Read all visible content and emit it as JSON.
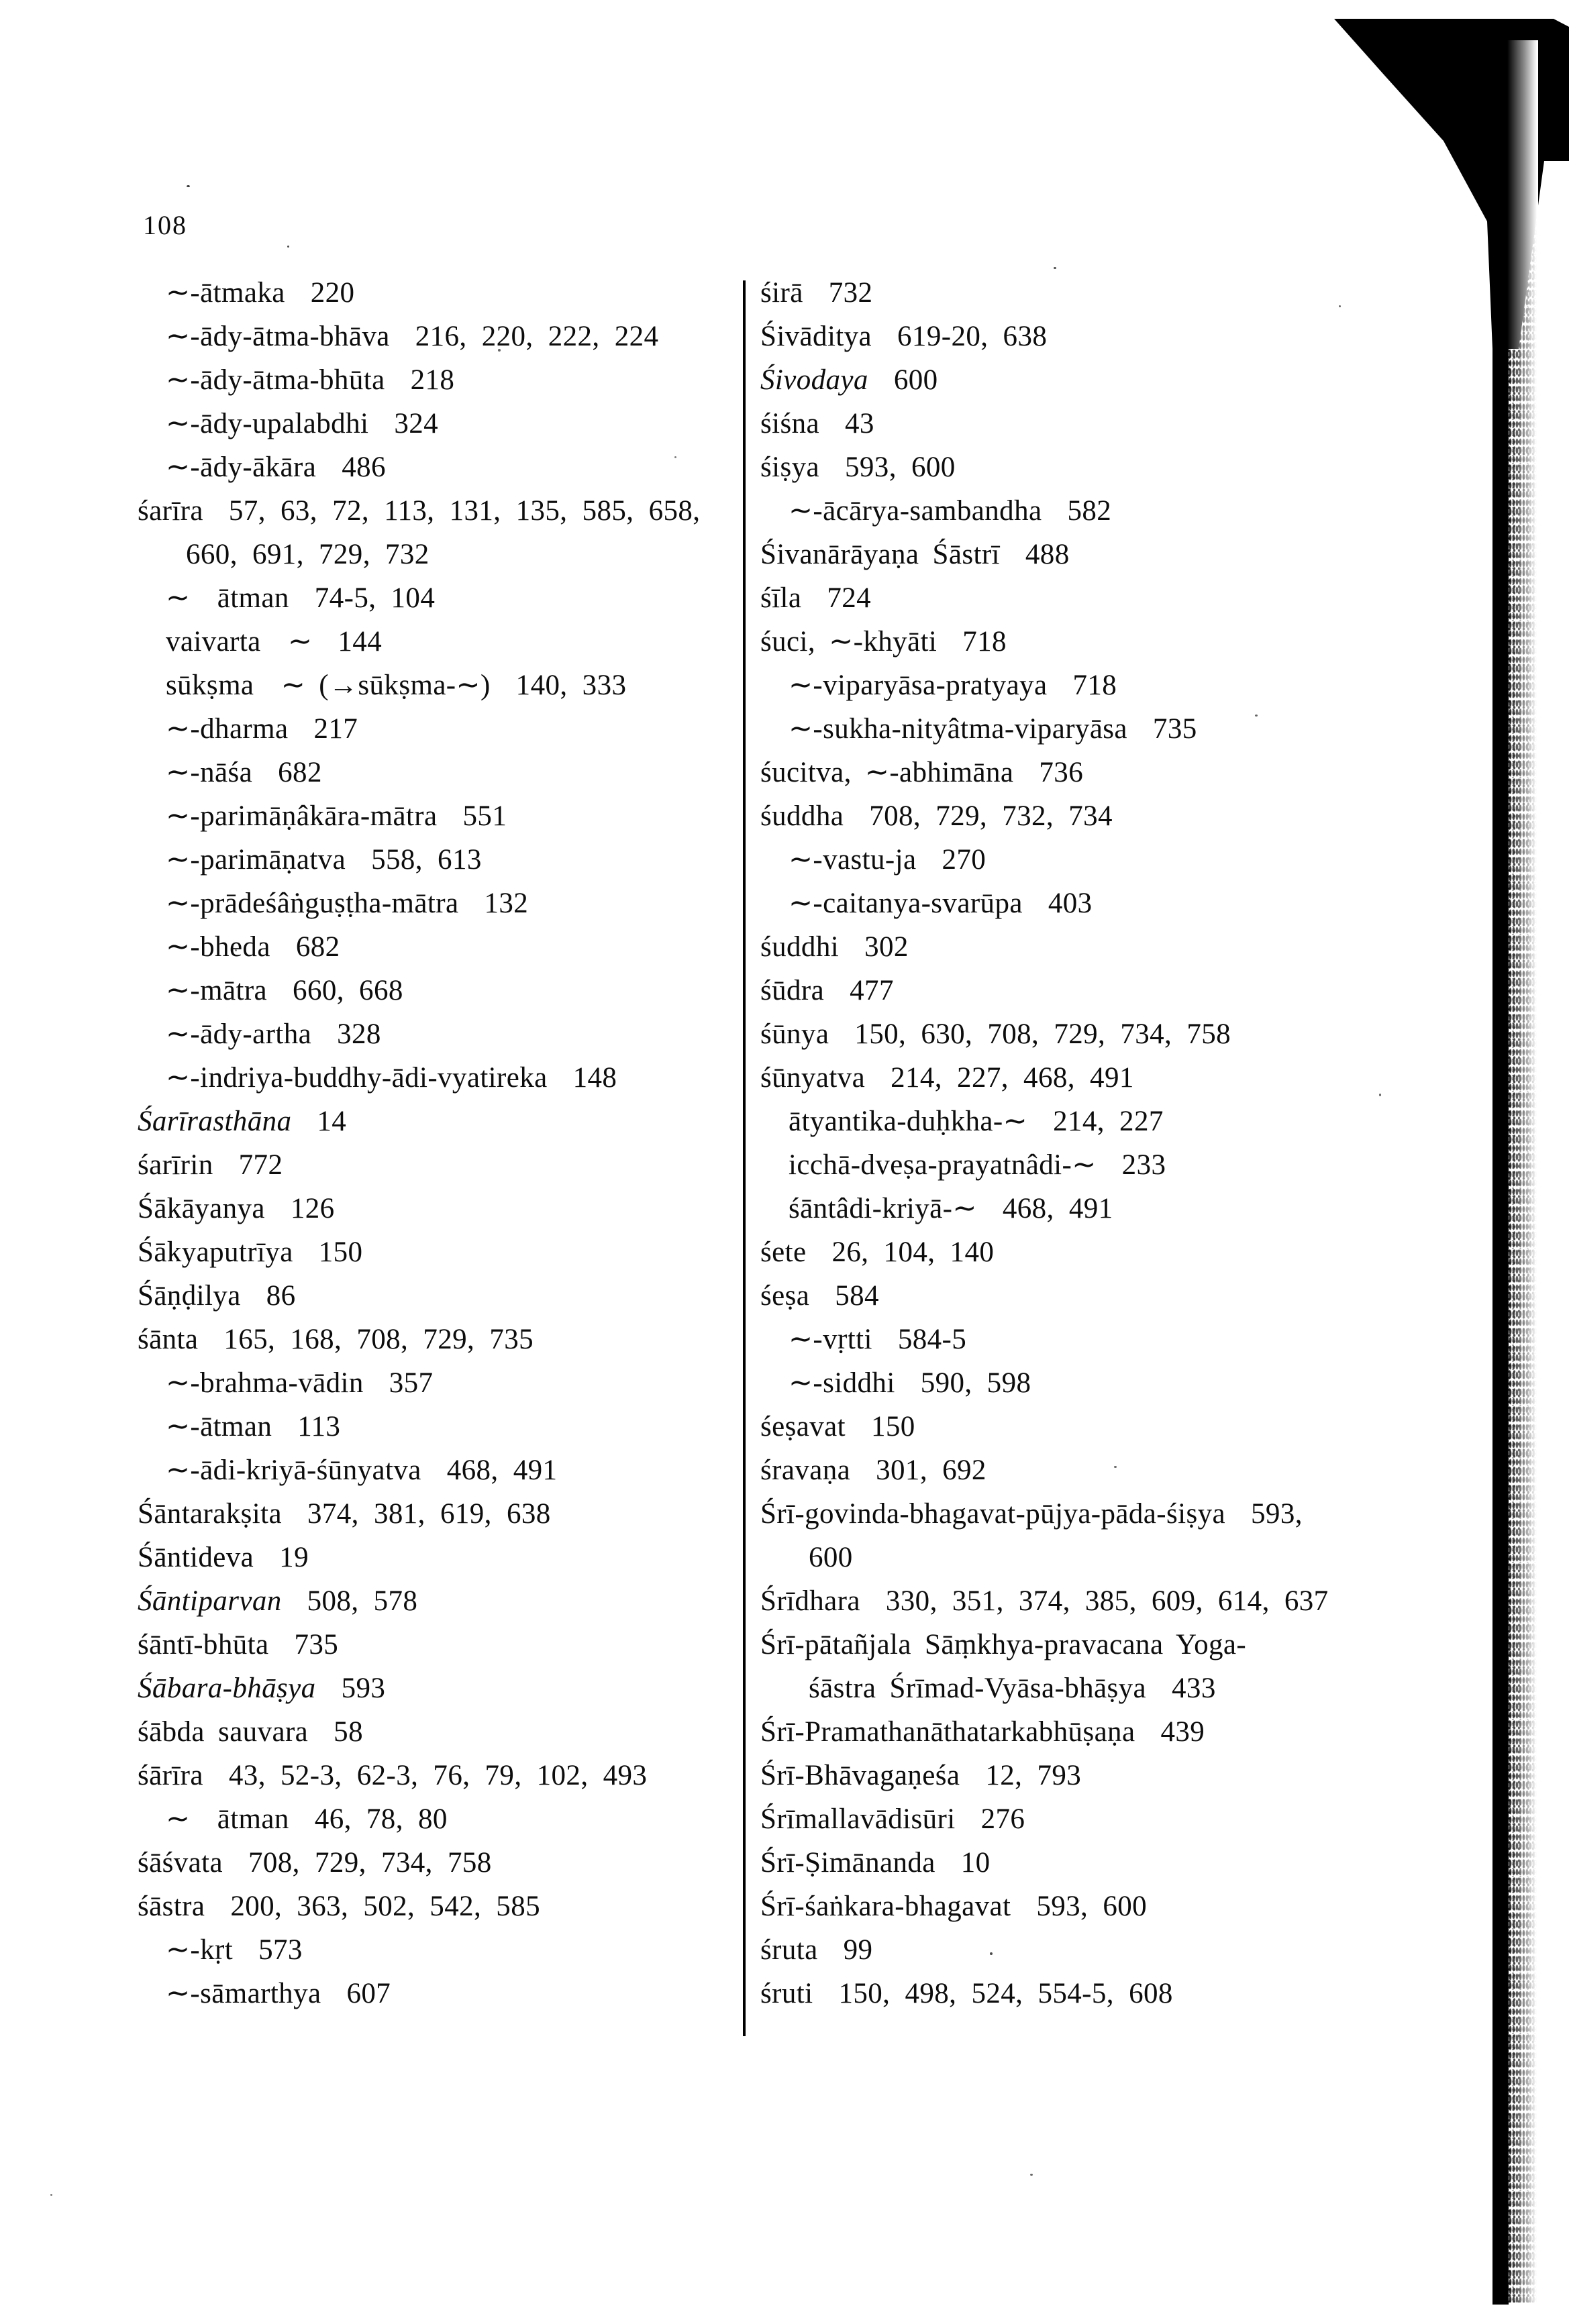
{
  "page": {
    "number": "108"
  },
  "index": {
    "left_column": [
      {
        "term": "∼-ātmaka",
        "pages": "220",
        "indent": 1,
        "italic": false
      },
      {
        "term": "∼-ādy-ātma-bhāva",
        "pages": "216, 220, 222, 224",
        "indent": 1,
        "italic": false
      },
      {
        "term": "∼-ādy-ātma-bhūta",
        "pages": "218",
        "indent": 1,
        "italic": false
      },
      {
        "term": "∼-ādy-upalabdhi",
        "pages": "324",
        "indent": 1,
        "italic": false
      },
      {
        "term": "∼-ādy-ākāra",
        "pages": "486",
        "indent": 1,
        "italic": false
      },
      {
        "term": "śarīra",
        "pages": "57, 63, 72, 113, 131, 135, 585, 658,",
        "indent": 0,
        "italic": false
      },
      {
        "term": "",
        "pages": "660, 691, 729, 732",
        "indent": 2,
        "italic": false
      },
      {
        "term": "∼  ātman",
        "pages": "74-5, 104",
        "indent": 1,
        "italic": false
      },
      {
        "term": "vaivarta  ∼",
        "pages": "144",
        "indent": 1,
        "italic": false
      },
      {
        "term": "sūkṣma  ∼ (→sūkṣma-∼)",
        "pages": "140, 333",
        "indent": 1,
        "italic": false
      },
      {
        "term": "∼-dharma",
        "pages": "217",
        "indent": 1,
        "italic": false
      },
      {
        "term": "∼-nāśa",
        "pages": "682",
        "indent": 1,
        "italic": false
      },
      {
        "term": "∼-parimāṇâkāra-mātra",
        "pages": "551",
        "indent": 1,
        "italic": false
      },
      {
        "term": "∼-parimāṇatva",
        "pages": "558, 613",
        "indent": 1,
        "italic": false
      },
      {
        "term": "∼-prādeśâṅguṣṭha-mātra",
        "pages": "132",
        "indent": 1,
        "italic": false
      },
      {
        "term": "∼-bheda",
        "pages": "682",
        "indent": 1,
        "italic": false
      },
      {
        "term": "∼-mātra",
        "pages": "660, 668",
        "indent": 1,
        "italic": false
      },
      {
        "term": "∼-ādy-artha",
        "pages": "328",
        "indent": 1,
        "italic": false
      },
      {
        "term": "∼-indriya-buddhy-ādi-vyatireka",
        "pages": "148",
        "indent": 1,
        "italic": false
      },
      {
        "term": "Śarīrasthāna",
        "pages": "14",
        "indent": 0,
        "italic": true
      },
      {
        "term": "śarīrin",
        "pages": "772",
        "indent": 0,
        "italic": false
      },
      {
        "term": "Śākāyanya",
        "pages": "126",
        "indent": 0,
        "italic": false
      },
      {
        "term": "Śākyaputrīya",
        "pages": "150",
        "indent": 0,
        "italic": false
      },
      {
        "term": "Śāṇḍilya",
        "pages": "86",
        "indent": 0,
        "italic": false
      },
      {
        "term": "śānta",
        "pages": "165, 168, 708, 729, 735",
        "indent": 0,
        "italic": false
      },
      {
        "term": "∼-brahma-vādin",
        "pages": "357",
        "indent": 1,
        "italic": false
      },
      {
        "term": "∼-ātman",
        "pages": "113",
        "indent": 1,
        "italic": false
      },
      {
        "term": "∼-ādi-kriyā-śūnyatva",
        "pages": "468, 491",
        "indent": 1,
        "italic": false
      },
      {
        "term": "Śāntarakṣita",
        "pages": "374, 381, 619, 638",
        "indent": 0,
        "italic": false
      },
      {
        "term": "Śāntideva",
        "pages": "19",
        "indent": 0,
        "italic": false
      },
      {
        "term": "Śāntiparvan",
        "pages": "508, 578",
        "indent": 0,
        "italic": true
      },
      {
        "term": "śāntī-bhūta",
        "pages": "735",
        "indent": 0,
        "italic": false
      },
      {
        "term": "Śābara-bhāṣya",
        "pages": "593",
        "indent": 0,
        "italic": true
      },
      {
        "term": "śābda sauvara",
        "pages": "58",
        "indent": 0,
        "italic": false
      },
      {
        "term": "śārīra",
        "pages": "43, 52-3, 62-3, 76, 79, 102, 493",
        "indent": 0,
        "italic": false
      },
      {
        "term": "∼  ātman",
        "pages": "46, 78, 80",
        "indent": 1,
        "italic": false
      },
      {
        "term": "śāśvata",
        "pages": "708, 729, 734, 758",
        "indent": 0,
        "italic": false
      },
      {
        "term": "śāstra",
        "pages": "200, 363, 502, 542, 585",
        "indent": 0,
        "italic": false
      },
      {
        "term": "∼-kṛt",
        "pages": "573",
        "indent": 1,
        "italic": false
      },
      {
        "term": "∼-sāmarthya",
        "pages": "607",
        "indent": 1,
        "italic": false
      }
    ],
    "right_column": [
      {
        "term": "śirā",
        "pages": "732",
        "indent": 0,
        "italic": false
      },
      {
        "term": "Śivāditya",
        "pages": "619-20, 638",
        "indent": 0,
        "italic": false
      },
      {
        "term": "Śivodaya",
        "pages": "600",
        "indent": 0,
        "italic": true
      },
      {
        "term": "śiśna",
        "pages": "43",
        "indent": 0,
        "italic": false
      },
      {
        "term": "śiṣya",
        "pages": "593, 600",
        "indent": 0,
        "italic": false
      },
      {
        "term": "∼-ācārya-sambandha",
        "pages": "582",
        "indent": 1,
        "italic": false
      },
      {
        "term": "Śivanārāyaṇa Śāstrī",
        "pages": "488",
        "indent": 0,
        "italic": false
      },
      {
        "term": "śīla",
        "pages": "724",
        "indent": 0,
        "italic": false
      },
      {
        "term": "śuci, ∼-khyāti",
        "pages": "718",
        "indent": 0,
        "italic": false
      },
      {
        "term": "∼-viparyāsa-pratyaya",
        "pages": "718",
        "indent": 1,
        "italic": false
      },
      {
        "term": "∼-sukha-nityâtma-viparyāsa",
        "pages": "735",
        "indent": 1,
        "italic": false
      },
      {
        "term": "śucitva, ∼-abhimāna",
        "pages": "736",
        "indent": 0,
        "italic": false
      },
      {
        "term": "śuddha",
        "pages": "708, 729, 732, 734",
        "indent": 0,
        "italic": false
      },
      {
        "term": "∼-vastu-ja",
        "pages": "270",
        "indent": 1,
        "italic": false
      },
      {
        "term": "∼-caitanya-svarūpa",
        "pages": "403",
        "indent": 1,
        "italic": false
      },
      {
        "term": "śuddhi",
        "pages": "302",
        "indent": 0,
        "italic": false
      },
      {
        "term": "śūdra",
        "pages": "477",
        "indent": 0,
        "italic": false
      },
      {
        "term": "śūnya",
        "pages": "150, 630, 708, 729, 734, 758",
        "indent": 0,
        "italic": false
      },
      {
        "term": "śūnyatva",
        "pages": "214, 227, 468, 491",
        "indent": 0,
        "italic": false
      },
      {
        "term": "ātyantika-duḥkha-∼",
        "pages": "214, 227",
        "indent": 1,
        "italic": false
      },
      {
        "term": "icchā-dveṣa-prayatnâdi-∼",
        "pages": "233",
        "indent": 1,
        "italic": false
      },
      {
        "term": "śāntâdi-kriyā-∼",
        "pages": "468, 491",
        "indent": 1,
        "italic": false
      },
      {
        "term": "śete",
        "pages": "26, 104, 140",
        "indent": 0,
        "italic": false
      },
      {
        "term": "śeṣa",
        "pages": "584",
        "indent": 0,
        "italic": false
      },
      {
        "term": "∼-vṛtti",
        "pages": "584-5",
        "indent": 1,
        "italic": false
      },
      {
        "term": "∼-siddhi",
        "pages": "590, 598",
        "indent": 1,
        "italic": false
      },
      {
        "term": "śeṣavat",
        "pages": "150",
        "indent": 0,
        "italic": false
      },
      {
        "term": "śravaṇa",
        "pages": "301, 692",
        "indent": 0,
        "italic": false
      },
      {
        "term": "Śrī-govinda-bhagavat-pūjya-pāda-śiṣya",
        "pages": "593,",
        "indent": 0,
        "italic": false
      },
      {
        "term": "",
        "pages": "600",
        "indent": 2,
        "italic": false
      },
      {
        "term": "Śrīdhara",
        "pages": "330, 351, 374, 385, 609, 614, 637",
        "indent": 0,
        "italic": false
      },
      {
        "term": "Śrī-pātañjala Sāṃkhya-pravacana Yoga-",
        "pages": "",
        "indent": 0,
        "italic": false
      },
      {
        "term": "śāstra Śrīmad-Vyāsa-bhāṣya",
        "pages": "433",
        "indent": 2,
        "italic": false
      },
      {
        "term": "Śrī-Pramathanāthatarkabhūṣaṇa",
        "pages": "439",
        "indent": 0,
        "italic": false
      },
      {
        "term": "Śrī-Bhāvagaṇeśa",
        "pages": "12, 793",
        "indent": 0,
        "italic": false
      },
      {
        "term": "Śrīmallavādisūri",
        "pages": "276",
        "indent": 0,
        "italic": false
      },
      {
        "term": "Śrī-Ṣimānanda",
        "pages": "10",
        "indent": 0,
        "italic": false
      },
      {
        "term": "Śrī-śaṅkara-bhagavat",
        "pages": "593, 600",
        "indent": 0,
        "italic": false
      },
      {
        "term": "śruta",
        "pages": "99",
        "indent": 0,
        "italic": false
      },
      {
        "term": "śruti",
        "pages": "150, 498, 524, 554-5, 608",
        "indent": 0,
        "italic": false
      }
    ]
  }
}
